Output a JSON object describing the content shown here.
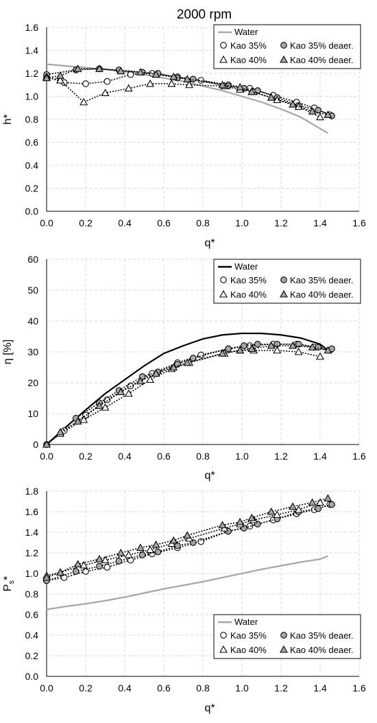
{
  "figure_title": "2000 rpm",
  "legend_labels": {
    "water": "Water",
    "kao35": "Kao 35%",
    "kao35d": "Kao 35% deaer.",
    "kao40": "Kao 40%",
    "kao40d": "Kao 40% deaer."
  },
  "colors": {
    "water_head": "#a6a6a6",
    "water_eff": "#000000",
    "water_ps": "#a6a6a6",
    "open_fill": "#ffffff",
    "deaer_fill": "#a6a6a6",
    "marker_edge": "#000000",
    "grid": "#d9d9d9"
  },
  "chart_data": [
    {
      "type": "line",
      "title": "2000 rpm",
      "xlabel": "q*",
      "ylabel": "h*",
      "xlim": [
        0,
        1.6
      ],
      "ylim": [
        0,
        1.6
      ],
      "xticks": [
        "0.0",
        "0.2",
        "0.4",
        "0.6",
        "0.8",
        "1.0",
        "1.2",
        "1.4",
        "1.6"
      ],
      "yticks": [
        "0.0",
        "0.2",
        "0.4",
        "0.6",
        "0.8",
        "1.0",
        "1.2",
        "1.4",
        "1.6"
      ],
      "grid": true,
      "legend_position": "top-right",
      "series": [
        {
          "name": "Water",
          "x": [
            0,
            0.1,
            0.2,
            0.3,
            0.4,
            0.5,
            0.6,
            0.7,
            0.8,
            0.9,
            1.0,
            1.1,
            1.2,
            1.3,
            1.4,
            1.44
          ],
          "y": [
            1.28,
            1.265,
            1.25,
            1.235,
            1.215,
            1.19,
            1.16,
            1.13,
            1.09,
            1.05,
            1.0,
            0.95,
            0.89,
            0.82,
            0.72,
            0.68
          ]
        },
        {
          "name": "Kao 35%",
          "x": [
            0,
            0.09,
            0.2,
            0.31,
            0.43,
            0.54,
            0.67,
            0.79,
            0.93,
            1.04,
            1.16,
            1.28,
            1.37,
            1.45
          ],
          "y": [
            1.17,
            1.12,
            1.11,
            1.13,
            1.19,
            1.2,
            1.17,
            1.14,
            1.1,
            1.07,
            1.01,
            0.95,
            0.9,
            0.84
          ]
        },
        {
          "name": "Kao 35% deaer.",
          "x": [
            0,
            0.15,
            0.27,
            0.37,
            0.49,
            0.57,
            0.67,
            0.75,
            0.93,
            1.01,
            1.08,
            1.18,
            1.29,
            1.39,
            1.46
          ],
          "y": [
            1.19,
            1.23,
            1.24,
            1.23,
            1.21,
            1.2,
            1.16,
            1.15,
            1.09,
            1.07,
            1.05,
            0.99,
            0.92,
            0.88,
            0.83
          ]
        },
        {
          "name": "Kao 40%",
          "x": [
            0,
            0.07,
            0.19,
            0.3,
            0.42,
            0.53,
            0.64,
            0.73,
            0.91,
            0.99,
            1.06,
            1.18,
            1.29,
            1.4
          ],
          "y": [
            1.17,
            1.14,
            0.95,
            1.03,
            1.07,
            1.11,
            1.11,
            1.1,
            1.09,
            1.06,
            1.04,
            0.97,
            0.91,
            0.82
          ]
        },
        {
          "name": "Kao 40% deaer.",
          "x": [
            0,
            0.07,
            0.16,
            0.27,
            0.38,
            0.48,
            0.56,
            0.65,
            0.72,
            0.9,
            0.99,
            1.05,
            1.15,
            1.26,
            1.36,
            1.44
          ],
          "y": [
            1.16,
            1.18,
            1.24,
            1.24,
            1.22,
            1.21,
            1.19,
            1.17,
            1.15,
            1.1,
            1.08,
            1.04,
            0.99,
            0.93,
            0.87,
            0.84
          ]
        }
      ]
    },
    {
      "type": "line",
      "xlabel": "q*",
      "ylabel": "η [%]",
      "xlim": [
        0,
        1.6
      ],
      "ylim": [
        0,
        60
      ],
      "xticks": [
        "0.0",
        "0.2",
        "0.4",
        "0.6",
        "0.8",
        "1.0",
        "1.2",
        "1.4",
        "1.6"
      ],
      "yticks": [
        "0",
        "10",
        "20",
        "30",
        "40",
        "50",
        "60"
      ],
      "grid": true,
      "legend_position": "top-right",
      "series": [
        {
          "name": "Water",
          "x": [
            0,
            0.1,
            0.2,
            0.3,
            0.4,
            0.5,
            0.6,
            0.7,
            0.8,
            0.9,
            1.0,
            1.1,
            1.2,
            1.3,
            1.4,
            1.44
          ],
          "y": [
            0,
            5.7,
            11.2,
            16.5,
            21.0,
            25.5,
            29.5,
            32.0,
            34.2,
            35.5,
            36.0,
            36.0,
            35.5,
            34.5,
            32.5,
            30.5
          ]
        },
        {
          "name": "Kao 35%",
          "x": [
            0,
            0.09,
            0.2,
            0.31,
            0.43,
            0.54,
            0.67,
            0.79,
            0.93,
            1.04,
            1.16,
            1.28,
            1.37,
            1.45
          ],
          "y": [
            0,
            4.5,
            9.5,
            14.5,
            19.0,
            23.0,
            26.5,
            29.0,
            31.0,
            32.0,
            32.5,
            32.5,
            31.5,
            30.5
          ]
        },
        {
          "name": "Kao 35% deaer.",
          "x": [
            0,
            0.15,
            0.27,
            0.37,
            0.49,
            0.57,
            0.67,
            0.75,
            0.93,
            1.01,
            1.08,
            1.18,
            1.29,
            1.39,
            1.46
          ],
          "y": [
            0,
            8.5,
            13.5,
            17.5,
            22.0,
            23.5,
            26.0,
            28.0,
            31.0,
            32.0,
            32.5,
            32.5,
            32.5,
            31.5,
            31.0
          ]
        },
        {
          "name": "Kao 40%",
          "x": [
            0,
            0.07,
            0.19,
            0.3,
            0.42,
            0.53,
            0.64,
            0.73,
            0.91,
            0.99,
            1.06,
            1.18,
            1.29,
            1.4
          ],
          "y": [
            0,
            3.5,
            8.0,
            12.0,
            16.5,
            21.0,
            24.5,
            26.5,
            29.5,
            30.5,
            30.5,
            30.5,
            30.0,
            28.5
          ]
        },
        {
          "name": "Kao 40% deaer.",
          "x": [
            0,
            0.07,
            0.16,
            0.27,
            0.38,
            0.48,
            0.56,
            0.65,
            0.72,
            0.9,
            0.99,
            1.05,
            1.15,
            1.26,
            1.36,
            1.44
          ],
          "y": [
            0,
            4.0,
            7.5,
            12.5,
            17.0,
            20.5,
            23.0,
            25.0,
            26.5,
            29.5,
            30.5,
            31.0,
            32.0,
            32.0,
            31.5,
            30.5
          ]
        }
      ]
    },
    {
      "type": "line",
      "xlabel": "q*",
      "ylabel": "Ps*",
      "xlim": [
        0,
        1.6
      ],
      "ylim": [
        0,
        1.8
      ],
      "xticks": [
        "0.0",
        "0.2",
        "0.4",
        "0.6",
        "0.8",
        "1.0",
        "1.2",
        "1.4",
        "1.6"
      ],
      "yticks": [
        "0.0",
        "0.2",
        "0.4",
        "0.6",
        "0.8",
        "1.0",
        "1.2",
        "1.4",
        "1.6",
        "1.8"
      ],
      "grid": true,
      "legend_position": "bottom-right",
      "series": [
        {
          "name": "Water",
          "x": [
            0,
            0.1,
            0.2,
            0.3,
            0.4,
            0.5,
            0.6,
            0.7,
            0.8,
            0.9,
            1.0,
            1.1,
            1.2,
            1.3,
            1.4,
            1.44
          ],
          "y": [
            0.65,
            0.68,
            0.705,
            0.735,
            0.77,
            0.81,
            0.85,
            0.885,
            0.92,
            0.96,
            1.0,
            1.04,
            1.075,
            1.11,
            1.14,
            1.17
          ]
        },
        {
          "name": "Kao 35%",
          "x": [
            0,
            0.09,
            0.2,
            0.31,
            0.43,
            0.54,
            0.67,
            0.79,
            0.93,
            1.04,
            1.16,
            1.28,
            1.37,
            1.45
          ],
          "y": [
            0.93,
            0.96,
            1.02,
            1.06,
            1.13,
            1.19,
            1.25,
            1.31,
            1.41,
            1.46,
            1.52,
            1.58,
            1.62,
            1.67
          ]
        },
        {
          "name": "Kao 35% deaer.",
          "x": [
            0,
            0.15,
            0.27,
            0.37,
            0.49,
            0.57,
            0.67,
            0.75,
            0.93,
            1.01,
            1.08,
            1.18,
            1.29,
            1.39,
            1.46
          ],
          "y": [
            0.93,
            1.02,
            1.07,
            1.12,
            1.18,
            1.21,
            1.27,
            1.3,
            1.41,
            1.44,
            1.48,
            1.53,
            1.6,
            1.63,
            1.67
          ]
        },
        {
          "name": "Kao 40%",
          "x": [
            0,
            0.07,
            0.19,
            0.3,
            0.42,
            0.53,
            0.64,
            0.73,
            0.91,
            0.99,
            1.06,
            1.18,
            1.29,
            1.4
          ],
          "y": [
            0.98,
            1.01,
            1.08,
            1.13,
            1.18,
            1.23,
            1.29,
            1.34,
            1.44,
            1.48,
            1.52,
            1.57,
            1.62,
            1.69
          ]
        },
        {
          "name": "Kao 40% deaer.",
          "x": [
            0,
            0.07,
            0.16,
            0.27,
            0.38,
            0.48,
            0.56,
            0.65,
            0.72,
            0.9,
            0.99,
            1.05,
            1.15,
            1.26,
            1.36,
            1.44
          ],
          "y": [
            0.96,
            1.01,
            1.09,
            1.14,
            1.2,
            1.25,
            1.28,
            1.32,
            1.37,
            1.47,
            1.5,
            1.54,
            1.6,
            1.65,
            1.69,
            1.73
          ]
        }
      ]
    }
  ]
}
